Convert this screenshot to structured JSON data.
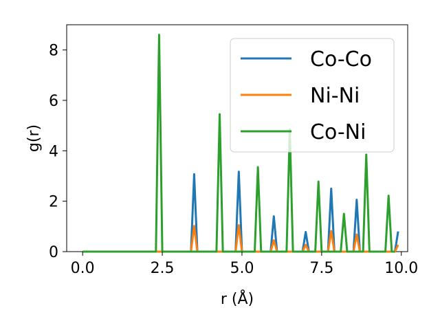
{
  "chart_data": {
    "type": "line",
    "title": "",
    "xlabel": "r (Å)",
    "ylabel": "g(r)",
    "xlim": [
      -0.5,
      10.2
    ],
    "ylim": [
      0,
      9.0
    ],
    "xticks": [
      0.0,
      2.5,
      5.0,
      7.5,
      10.0
    ],
    "xtick_labels": [
      "0.0",
      "2.5",
      "5.0",
      "7.5",
      "10.0"
    ],
    "yticks": [
      0,
      2,
      4,
      6,
      8
    ],
    "ytick_labels": [
      "0",
      "2",
      "4",
      "6",
      "8"
    ],
    "grid": false,
    "legend_position": "top-right",
    "series": [
      {
        "name": "Co-Co",
        "color": "#1f77b4",
        "x": [
          0.0,
          3.4,
          3.5,
          3.6,
          4.8,
          4.9,
          5.0,
          5.9,
          6.0,
          6.1,
          6.9,
          7.0,
          7.1,
          7.7,
          7.8,
          7.9,
          8.5,
          8.6,
          8.7,
          9.8,
          9.9
        ],
        "y": [
          0,
          0,
          3.07,
          0,
          0,
          3.17,
          0,
          0,
          1.4,
          0,
          0,
          0.78,
          0,
          0,
          2.5,
          0,
          0,
          2.06,
          0,
          0,
          0.8
        ]
      },
      {
        "name": "Ni-Ni",
        "color": "#ff7f0e",
        "x": [
          0.0,
          3.4,
          3.5,
          3.6,
          4.8,
          4.9,
          5.0,
          5.9,
          6.0,
          6.1,
          6.9,
          7.0,
          7.1,
          7.7,
          7.8,
          7.9,
          8.5,
          8.6,
          8.7,
          9.8,
          9.9
        ],
        "y": [
          0,
          0,
          1.02,
          0,
          0,
          1.05,
          0,
          0,
          0.45,
          0,
          0,
          0.27,
          0,
          0,
          0.82,
          0,
          0,
          0.68,
          0,
          0,
          0.27
        ]
      },
      {
        "name": "Co-Ni",
        "color": "#2ca02c",
        "x": [
          0.0,
          2.3,
          2.4,
          2.5,
          4.2,
          4.3,
          4.4,
          5.4,
          5.5,
          5.6,
          6.4,
          6.5,
          6.6,
          7.3,
          7.4,
          7.5,
          8.1,
          8.2,
          8.3,
          8.8,
          8.9,
          9.0,
          9.5,
          9.6,
          9.7,
          9.8
        ],
        "y": [
          0,
          0,
          8.6,
          0,
          0,
          5.45,
          0,
          0,
          3.35,
          0,
          0,
          4.85,
          0,
          0,
          2.78,
          0,
          0,
          1.5,
          0,
          0,
          3.85,
          0,
          0,
          2.22,
          0,
          0
        ]
      }
    ]
  }
}
